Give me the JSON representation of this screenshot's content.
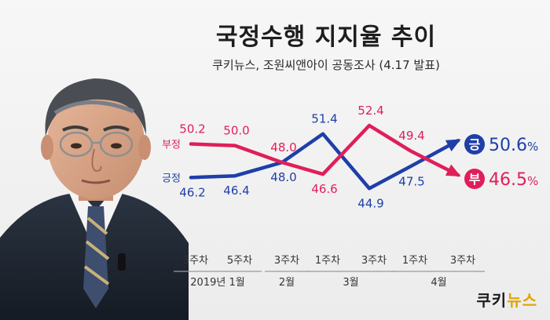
{
  "title": "국정수행 지지율 추이",
  "subtitle": "쿠키뉴스, 조원씨앤아이 공동조사 (4.17 발표)",
  "brand": {
    "part1": "쿠키",
    "part2": "뉴스"
  },
  "colors": {
    "positive": "#1e3fa8",
    "negative": "#e01e5a",
    "gray": "#666666"
  },
  "chart_data": {
    "type": "line",
    "categories": [
      "3주차",
      "5주차",
      "3주차",
      "1주차",
      "3주차",
      "1주차",
      "3주차"
    ],
    "months": [
      {
        "label": "2019년 1월",
        "span": [
          0,
          1
        ]
      },
      {
        "label": "2월",
        "span": [
          2,
          2
        ]
      },
      {
        "label": "3월",
        "span": [
          3,
          4
        ]
      },
      {
        "label": "4월",
        "span": [
          5,
          6
        ]
      }
    ],
    "series": [
      {
        "name": "긍정",
        "values": [
          46.2,
          46.4,
          48.0,
          51.4,
          44.9,
          47.5,
          50.6
        ],
        "labels": [
          "46.2",
          "46.4",
          "48.0",
          "51.4",
          "44.9",
          "47.5",
          ""
        ],
        "final": {
          "badge": "긍",
          "value": "50.6",
          "unit": "%"
        }
      },
      {
        "name": "부정",
        "values": [
          50.2,
          50.0,
          48.0,
          46.6,
          52.4,
          49.4,
          46.5
        ],
        "labels": [
          "50.2",
          "50.0",
          "48.0",
          "46.6",
          "52.4",
          "49.4",
          ""
        ],
        "final": {
          "badge": "부",
          "value": "46.5",
          "unit": "%"
        }
      }
    ],
    "ylim": [
      43,
      54
    ]
  }
}
